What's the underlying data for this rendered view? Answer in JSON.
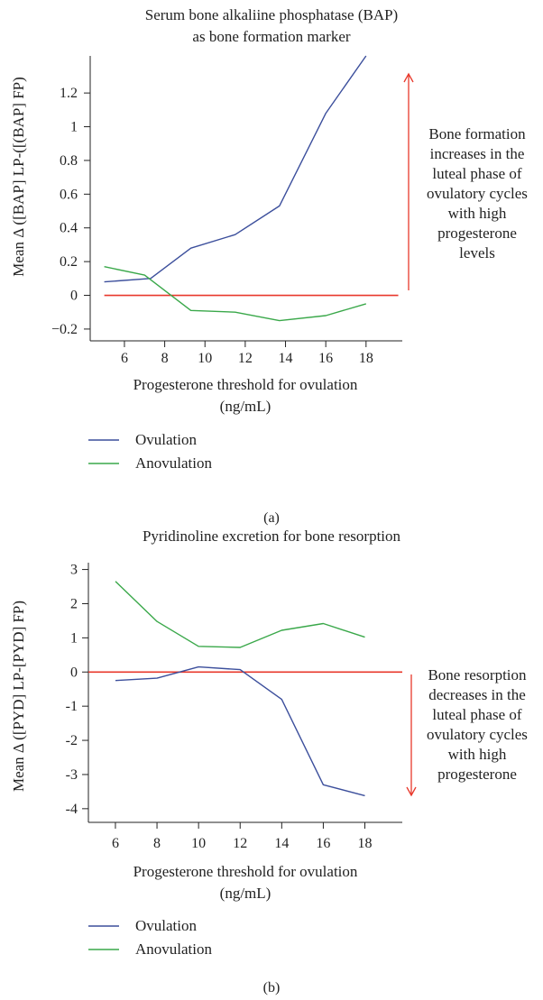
{
  "chart_data": [
    {
      "type": "line",
      "title_lines": [
        "Serum bone alkaliine phosphatase (BAP)",
        "as bone formation marker"
      ],
      "xlabel_lines": [
        "Progesterone threshold for ovulation",
        "(ng/mL)"
      ],
      "ylabel": "Mean Δ ([BAP] LP-([(BAP] FP)",
      "x_ticks": [
        6,
        8,
        10,
        12,
        14,
        16,
        18
      ],
      "y_ticks": [
        -0.2,
        0,
        0.2,
        0.4,
        0.6,
        0.8,
        1,
        1.2
      ],
      "y_tick_labels": [
        "−0.2",
        "0",
        "0.2",
        "0.4",
        "0.6",
        "0.8",
        "1",
        "1.2"
      ],
      "xlim": [
        4.3,
        19.8
      ],
      "ylim": [
        -0.27,
        1.42
      ],
      "reference_line": {
        "y": 0,
        "x_range": [
          5,
          19.6
        ],
        "color": "#e8382b"
      },
      "series": [
        {
          "name": "Ovulation",
          "color": "#3c4f9c",
          "x": [
            5,
            7.3,
            9.3,
            11.5,
            13.7,
            16,
            18
          ],
          "y": [
            0.08,
            0.1,
            0.28,
            0.36,
            0.53,
            1.08,
            1.42
          ]
        },
        {
          "name": "Anovulation",
          "color": "#3aa84a",
          "x": [
            5,
            7,
            9.3,
            11.5,
            13.7,
            16,
            18
          ],
          "y": [
            0.17,
            0.12,
            -0.09,
            -0.1,
            -0.15,
            -0.12,
            -0.05
          ]
        }
      ],
      "annotation": {
        "lines": [
          "Bone formation",
          "increases in the",
          "luteal phase of",
          "ovulatory cycles",
          "with high",
          "progesterone",
          "levels"
        ],
        "arrow_direction": "up",
        "color": "#e8382b"
      },
      "panel_label": "(a)",
      "legend_position": "bottom-left"
    },
    {
      "type": "line",
      "title_lines": [
        "Pyridinoline excretion for bone resorption"
      ],
      "xlabel_lines": [
        "Progesterone threshold for ovulation",
        "(ng/mL)"
      ],
      "ylabel": "Mean Δ ([PYD] LP-[PYD] FP)",
      "x_ticks": [
        6,
        8,
        10,
        12,
        14,
        16,
        18
      ],
      "y_ticks": [
        -4,
        -3,
        -2,
        -1,
        0,
        1,
        2,
        3
      ],
      "y_tick_labels": [
        "-4",
        "-3",
        "-2",
        "-1",
        "0",
        "1",
        "2",
        "3"
      ],
      "xlim": [
        4.7,
        19.8
      ],
      "ylim": [
        -4.4,
        3.2
      ],
      "reference_line": {
        "y": 0,
        "x_range": [
          4.7,
          19.8
        ],
        "color": "#e8382b"
      },
      "series": [
        {
          "name": "Ovulation",
          "color": "#3c4f9c",
          "x": [
            6,
            8,
            10,
            12,
            14,
            16,
            18
          ],
          "y": [
            -0.25,
            -0.18,
            0.15,
            0.07,
            -0.8,
            -3.3,
            -3.62
          ]
        },
        {
          "name": "Anovulation",
          "color": "#3aa84a",
          "x": [
            6,
            8,
            10,
            12,
            14,
            16,
            18
          ],
          "y": [
            2.65,
            1.48,
            0.75,
            0.72,
            1.22,
            1.42,
            1.02
          ]
        }
      ],
      "annotation": {
        "lines": [
          "Bone resorption",
          "decreases in the",
          "luteal phase of",
          "ovulatory cycles",
          "with high",
          "progesterone"
        ],
        "arrow_direction": "down",
        "color": "#e8382b"
      },
      "panel_label": "(b)",
      "legend_position": "bottom-left"
    }
  ]
}
